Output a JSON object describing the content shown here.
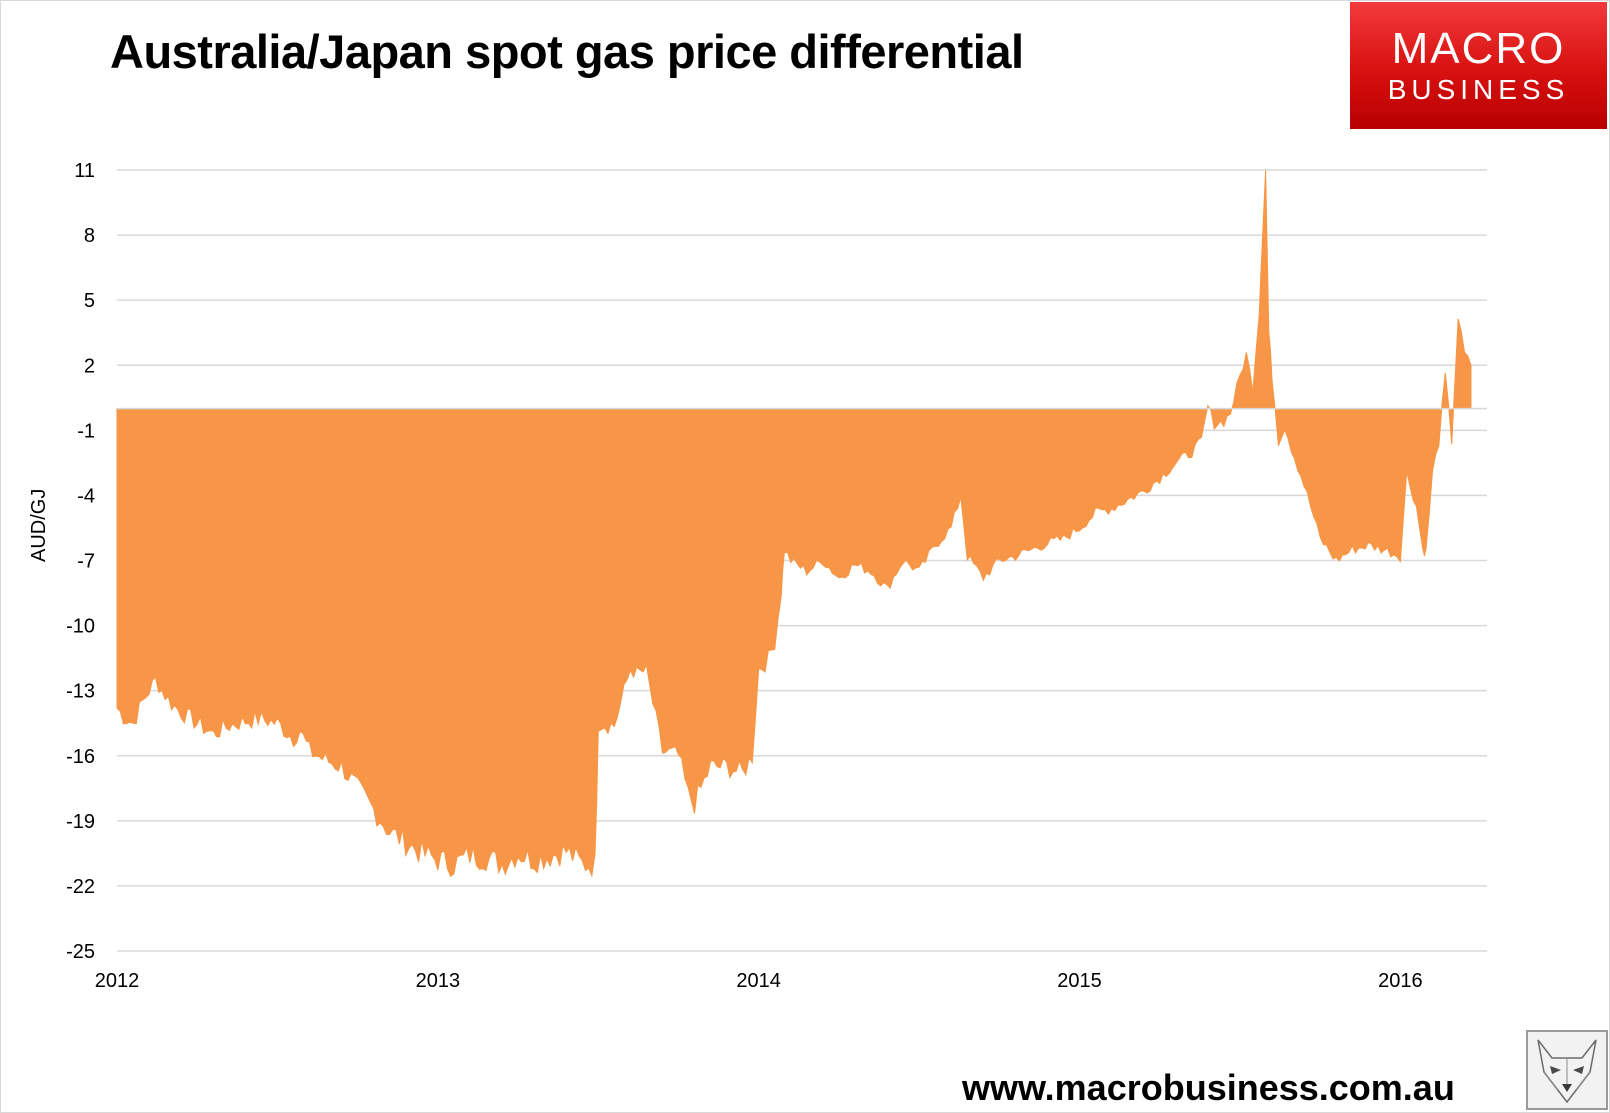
{
  "header": {
    "title": "Australia/Japan spot gas price differential"
  },
  "logo": {
    "line1": "MACRO",
    "line2": "BUSINESS",
    "color": "#e01b1b"
  },
  "footer": {
    "url": "www.macrobusiness.com.au"
  },
  "chart_data": {
    "type": "area",
    "title": "Australia/Japan spot gas price differential",
    "xlabel": "",
    "ylabel": "AUD/GJ",
    "ylim": [
      -25,
      11
    ],
    "xlim": [
      2012.0,
      2016.27
    ],
    "yticks": [
      11,
      8,
      5,
      2,
      -1,
      -4,
      -7,
      -10,
      -13,
      -16,
      -19,
      -22,
      -25
    ],
    "xticks": [
      "2012",
      "2013",
      "2014",
      "2015",
      "2016"
    ],
    "grid": true,
    "legend": "none",
    "color": "#f79646",
    "series": [
      {
        "x": [
          2012.0,
          2012.02,
          2012.05,
          2012.08,
          2012.12,
          2012.14,
          2012.17,
          2012.2,
          2012.25,
          2012.3,
          2012.35,
          2012.4,
          2012.45,
          2012.5,
          2012.55,
          2012.57,
          2012.6,
          2012.65,
          2012.7,
          2012.75,
          2012.8,
          2012.85,
          2012.9,
          2012.95,
          2013.0,
          2013.05,
          2013.1,
          2013.15,
          2013.2,
          2013.25,
          2013.3,
          2013.35,
          2013.4,
          2013.45,
          2013.49,
          2013.5,
          2013.55,
          2013.6,
          2013.62,
          2013.65,
          2013.7,
          2013.75,
          2013.78,
          2013.8,
          2013.85,
          2013.9,
          2013.95,
          2013.98,
          2014.0,
          2014.02,
          2014.05,
          2014.07,
          2014.08,
          2014.1,
          2014.15,
          2014.2,
          2014.25,
          2014.3,
          2014.35,
          2014.4,
          2014.45,
          2014.5,
          2014.55,
          2014.6,
          2014.63,
          2014.65,
          2014.7,
          2014.75,
          2014.8,
          2014.85,
          2014.9,
          2014.95,
          2015.0,
          2015.05,
          2015.1,
          2015.15,
          2015.2,
          2015.25,
          2015.3,
          2015.35,
          2015.38,
          2015.4,
          2015.42,
          2015.45,
          2015.47,
          2015.5,
          2015.52,
          2015.54,
          2015.56,
          2015.57,
          2015.58,
          2015.59,
          2015.6,
          2015.62,
          2015.64,
          2015.66,
          2015.7,
          2015.75,
          2015.8,
          2015.85,
          2015.9,
          2015.95,
          2016.0,
          2016.02,
          2016.05,
          2016.07,
          2016.08,
          2016.1,
          2016.12,
          2016.14,
          2016.16,
          2016.18,
          2016.2,
          2016.22
        ],
        "values": [
          -13.8,
          -14.2,
          -14.5,
          -13.5,
          -12.5,
          -13.0,
          -13.6,
          -14.0,
          -14.5,
          -15.0,
          -14.6,
          -14.4,
          -14.3,
          -14.5,
          -15.2,
          -14.8,
          -15.8,
          -16.2,
          -16.5,
          -17.5,
          -18.5,
          -19.5,
          -20.0,
          -20.5,
          -20.8,
          -21.0,
          -20.6,
          -20.7,
          -21.0,
          -20.5,
          -20.8,
          -20.6,
          -20.4,
          -21.0,
          -21.0,
          -14.5,
          -14.6,
          -12.0,
          -12.2,
          -12.1,
          -15.8,
          -16.0,
          -17.8,
          -18.2,
          -16.5,
          -16.5,
          -16.8,
          -16.0,
          -12.0,
          -11.8,
          -10.8,
          -8.5,
          -6.5,
          -7.0,
          -7.5,
          -7.0,
          -7.8,
          -7.2,
          -7.5,
          -8.3,
          -7.0,
          -7.5,
          -6.3,
          -5.5,
          -4.0,
          -6.8,
          -7.8,
          -7.0,
          -6.8,
          -6.5,
          -6.2,
          -6.0,
          -5.5,
          -4.8,
          -4.6,
          -4.2,
          -3.8,
          -3.2,
          -2.5,
          -2.0,
          -1.5,
          0.1,
          -0.7,
          -0.6,
          -0.2,
          1.5,
          2.5,
          1.0,
          4.5,
          8.0,
          11.0,
          3.5,
          1.5,
          -1.5,
          -0.8,
          -1.8,
          -3.5,
          -6.0,
          -7.0,
          -6.5,
          -6.3,
          -6.5,
          -6.8,
          -3.0,
          -4.5,
          -6.5,
          -6.6,
          -3.0,
          -1.5,
          1.5,
          -1.5,
          4.2,
          2.5,
          2.0
        ]
      }
    ]
  }
}
